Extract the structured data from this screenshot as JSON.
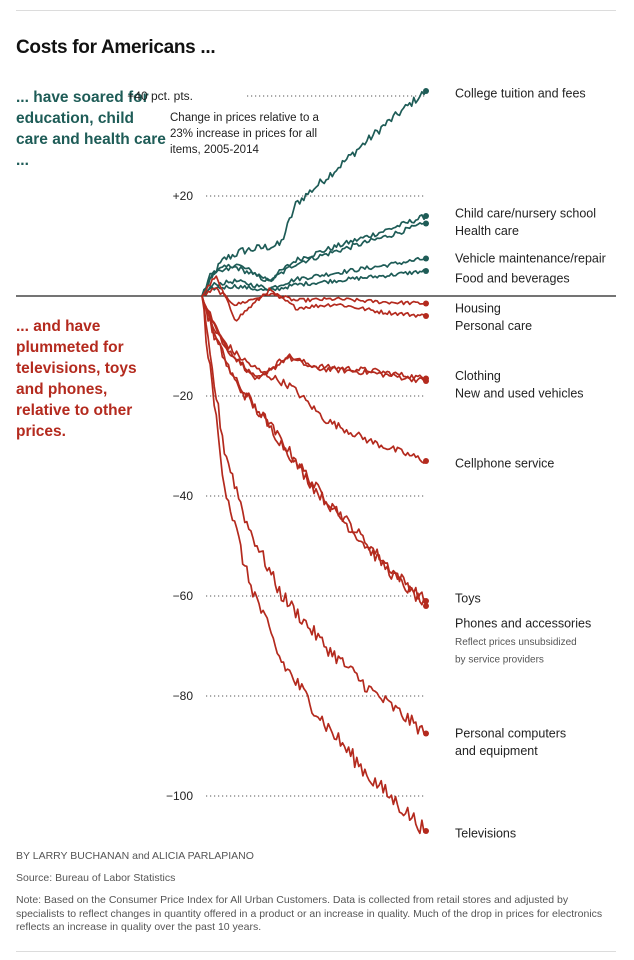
{
  "header": {
    "title": "Costs for Americans ...",
    "intro_up": "... have soared for education, child care and health care ...",
    "intro_down": "... and have plummeted for televisions, toys and phones, relative to other prices."
  },
  "chart_data": {
    "type": "line",
    "title": "Change in prices relative to a 23% increase in prices for all items, 2005-2014",
    "title_lines": [
      "Change in prices relative to a",
      "23% increase in prices for all",
      "items, 2005-2014"
    ],
    "ylabel": "pct. pts.",
    "ylim": [
      -106,
      42
    ],
    "yticks": [
      40,
      20,
      -20,
      -40,
      -60,
      -80,
      -100
    ],
    "ytick_labels": [
      "+40 pct. pts.",
      "+20",
      "−20",
      "−40",
      "−60",
      "−80",
      "−100"
    ],
    "x_range": [
      2005,
      2014
    ],
    "colors": {
      "up": "#1e5c57",
      "down": "#b42a1e"
    },
    "series": [
      {
        "name": "College tuition and fees",
        "final_value": 41,
        "direction": "up"
      },
      {
        "name": "Child care/nursery school",
        "final_value": 16,
        "direction": "up"
      },
      {
        "name": "Health care",
        "final_value": 14.5,
        "direction": "up"
      },
      {
        "name": "Vehicle maintenance/repair",
        "final_value": 7.5,
        "direction": "up"
      },
      {
        "name": "Food and beverages",
        "final_value": 5,
        "direction": "up"
      },
      {
        "name": "Housing",
        "final_value": -1.5,
        "direction": "down"
      },
      {
        "name": "Personal care",
        "final_value": -4,
        "direction": "down"
      },
      {
        "name": "Clothing",
        "final_value": -16.5,
        "direction": "down"
      },
      {
        "name": "New and used vehicles",
        "final_value": -17,
        "direction": "down"
      },
      {
        "name": "Cellphone service",
        "final_value": -33,
        "direction": "down"
      },
      {
        "name": "Toys",
        "final_value": -61,
        "direction": "down"
      },
      {
        "name": "Phones and accessories",
        "final_value": -62,
        "direction": "down",
        "note": "Reflect prices unsubsidized by service providers"
      },
      {
        "name": "Personal computers and equipment",
        "final_value": -87.5,
        "direction": "down"
      },
      {
        "name": "Televisions",
        "final_value": -107,
        "direction": "down"
      }
    ],
    "labels": [
      {
        "text": "College tuition and fees",
        "value": 40.5
      },
      {
        "text": "Child care/nursery school",
        "value": 16.5
      },
      {
        "text": "Health care",
        "value": 13
      },
      {
        "text": "Vehicle maintenance/repair",
        "value": 7.5
      },
      {
        "text": "Food and beverages",
        "value": 3.5
      },
      {
        "text": "Housing",
        "value": -2.5
      },
      {
        "text": "Personal care",
        "value": -6
      },
      {
        "text": "Clothing",
        "value": -16
      },
      {
        "text": "New and used vehicles",
        "value": -19.5
      },
      {
        "text": "Cellphone service",
        "value": -33.5
      },
      {
        "text": "Toys",
        "value": -60.5
      },
      {
        "text": "Phones and accessories",
        "value": -65.5
      },
      {
        "text": "Reflect prices unsubsidized",
        "value": -69,
        "small": true
      },
      {
        "text": "by service providers",
        "value": -72.5,
        "small": true
      },
      {
        "text": "Personal computers",
        "value": -87.5
      },
      {
        "text": "and equipment",
        "value": -91
      },
      {
        "text": "Televisions",
        "value": -107.5
      }
    ]
  },
  "footer": {
    "byline": "BY LARRY BUCHANAN and ALICIA PARLAPIANO",
    "source": "Source: Bureau of Labor Statistics",
    "note": "Note: Based on the Consumer Price Index for All Urban Customers. Data is collected from retail stores and adjusted by specialists to reflect changes in quantity offered in a product or an increase in quality. Much of the drop in prices for electronics reflects an increase in quality over the past 10 years."
  }
}
